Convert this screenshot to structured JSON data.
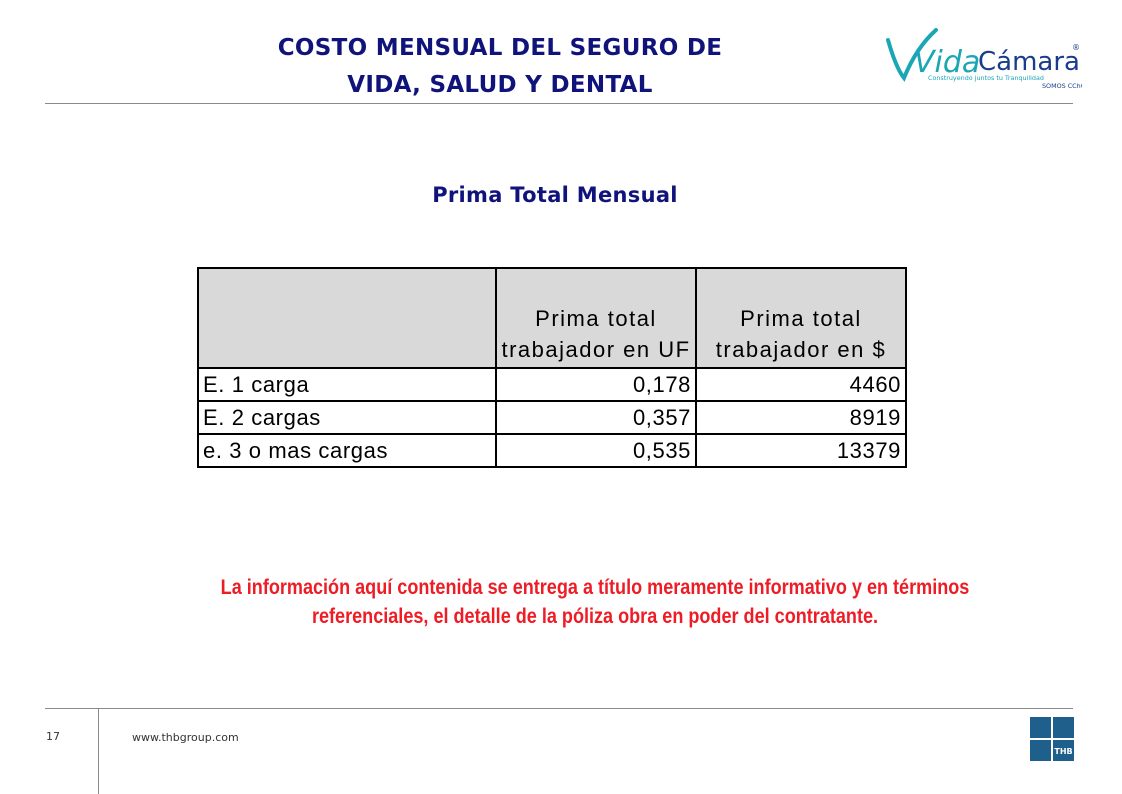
{
  "header": {
    "title_line1": "COSTO MENSUAL DEL SEGURO DE",
    "title_line2": "VIDA, SALUD Y DENTAL",
    "logo": {
      "brand_vida": "Vida",
      "brand_camara": "Cámara",
      "registered": "®",
      "tagline": "Construyendo juntos tu Tranquilidad",
      "tagline2": "SOMOS CChC",
      "colors": {
        "teal": "#1ba6b5",
        "blue": "#1a3c8c"
      }
    }
  },
  "section_title": "Prima Total Mensual",
  "table": {
    "headers": [
      "",
      "Prima total trabajador en UF",
      "Prima total trabajador en $"
    ],
    "rows": [
      {
        "label": "E. 1 carga",
        "uf": "0,178",
        "pesos": "4460"
      },
      {
        "label": "E. 2 cargas",
        "uf": "0,357",
        "pesos": "8919"
      },
      {
        "label": "e. 3 o mas cargas",
        "uf": "0,535",
        "pesos": "13379"
      }
    ]
  },
  "disclaimer": {
    "line1": "La información aquí contenida se entrega a título meramente informativo y en términos",
    "line2": "referenciales, el detalle de la póliza obra en poder del contratante."
  },
  "footer": {
    "page_number": "17",
    "website": "www.thbgroup.com",
    "thb_logo_text": "THB",
    "thb_color": "#1f5f8b"
  }
}
